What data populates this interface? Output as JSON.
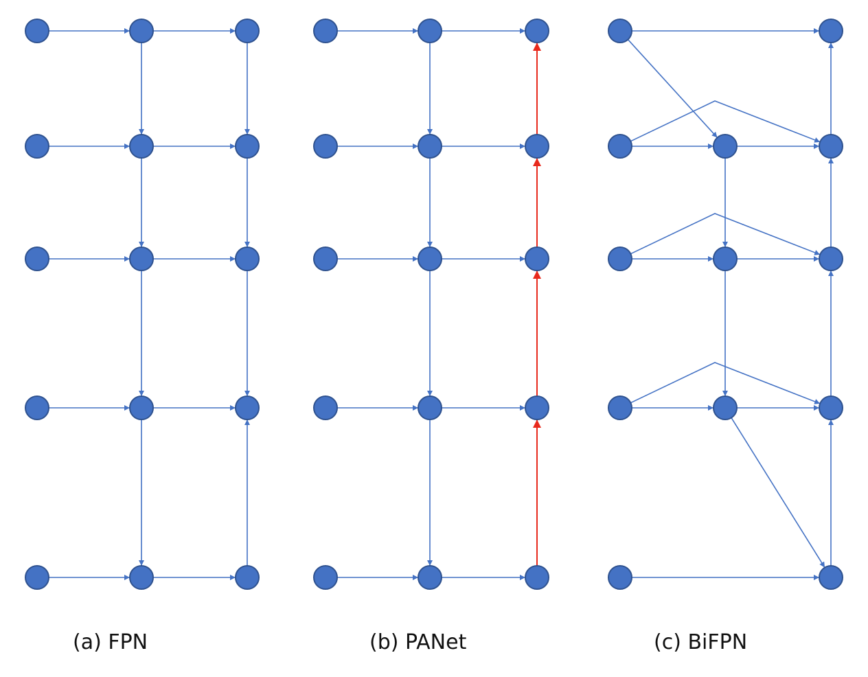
{
  "colors": {
    "node_fill": "#4472C4",
    "node_stroke": "#2F528F",
    "edge_blue": "#4472C4",
    "edge_red": "#E8291C",
    "background": "#FFFFFF"
  },
  "panels": [
    {
      "id": "fpn",
      "caption": "(a) FPN"
    },
    {
      "id": "panet",
      "caption": "(b) PANet"
    },
    {
      "id": "bifpn",
      "caption": "(c) BiFPN"
    }
  ]
}
